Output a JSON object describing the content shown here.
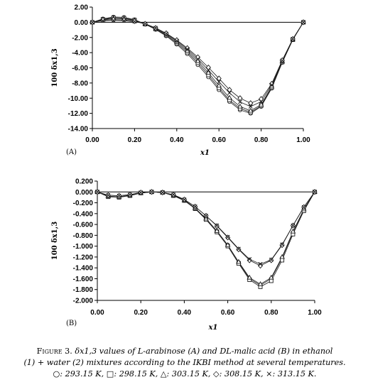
{
  "chart_data": [
    {
      "type": "line",
      "panel_label": "(A)",
      "xlabel": "x1",
      "ylabel": "100 δx1,3",
      "xlim": [
        0,
        1
      ],
      "ylim": [
        -14,
        2
      ],
      "xticks": [
        "0.00",
        "0.20",
        "0.40",
        "0.60",
        "0.80",
        "1.00"
      ],
      "yticks": [
        "2.00",
        "0.00",
        "-2.00",
        "-4.00",
        "-6.00",
        "-8.00",
        "-10.00",
        "-12.00",
        "-14.00"
      ],
      "grid": false,
      "x": [
        0,
        0.05,
        0.1,
        0.15,
        0.2,
        0.25,
        0.3,
        0.35,
        0.4,
        0.45,
        0.5,
        0.55,
        0.6,
        0.65,
        0.7,
        0.75,
        0.8,
        0.85,
        0.9,
        0.95,
        1
      ],
      "series": [
        {
          "marker": "circle",
          "values": [
            0,
            0.45,
            0.7,
            0.65,
            0.35,
            -0.25,
            -0.95,
            -1.8,
            -2.9,
            -4.15,
            -5.6,
            -7.2,
            -8.9,
            -10.45,
            -11.55,
            -12.0,
            -11.1,
            -8.7,
            -5.3,
            -2.3,
            0
          ]
        },
        {
          "marker": "square",
          "values": [
            0,
            0.4,
            0.6,
            0.55,
            0.3,
            -0.25,
            -0.9,
            -1.7,
            -2.75,
            -3.95,
            -5.35,
            -6.95,
            -8.65,
            -10.25,
            -11.35,
            -11.85,
            -11.0,
            -8.6,
            -5.25,
            -2.3,
            0
          ]
        },
        {
          "marker": "triangle",
          "values": [
            0,
            0.35,
            0.5,
            0.45,
            0.25,
            -0.2,
            -0.8,
            -1.6,
            -2.6,
            -3.75,
            -5.1,
            -6.65,
            -8.35,
            -9.95,
            -11.1,
            -11.65,
            -10.85,
            -8.45,
            -5.15,
            -2.25,
            0
          ]
        },
        {
          "marker": "diamond",
          "values": [
            0,
            0.3,
            0.35,
            0.3,
            0.15,
            -0.2,
            -0.75,
            -1.45,
            -2.35,
            -3.4,
            -4.6,
            -5.95,
            -7.4,
            -8.9,
            -10.0,
            -10.65,
            -10.1,
            -8.1,
            -5.0,
            -2.2,
            0
          ]
        },
        {
          "marker": "cross",
          "values": [
            0,
            0.2,
            0.25,
            0.2,
            0.1,
            -0.2,
            -0.75,
            -1.5,
            -2.45,
            -3.55,
            -4.85,
            -6.3,
            -7.85,
            -9.3,
            -10.5,
            -11.1,
            -10.45,
            -8.25,
            -5.05,
            -2.2,
            0
          ]
        }
      ]
    },
    {
      "type": "line",
      "panel_label": "(B)",
      "xlabel": "x1",
      "ylabel": "100 δx1,3",
      "xlim": [
        0,
        1
      ],
      "ylim": [
        -2.0,
        0.2
      ],
      "xticks": [
        "0.00",
        "0.20",
        "0.40",
        "0.60",
        "0.80",
        "1.00"
      ],
      "yticks": [
        "0.200",
        "0.000",
        "-0.200",
        "-0.400",
        "-0.600",
        "-0.800",
        "-1.000",
        "-1.200",
        "-1.400",
        "-1.600",
        "-1.800",
        "-2.000"
      ],
      "grid": false,
      "x": [
        0,
        0.05,
        0.1,
        0.15,
        0.2,
        0.25,
        0.3,
        0.35,
        0.4,
        0.45,
        0.5,
        0.55,
        0.6,
        0.65,
        0.7,
        0.75,
        0.8,
        0.85,
        0.9,
        0.95,
        1
      ],
      "series": [
        {
          "marker": "circle",
          "values": [
            0,
            -0.08,
            -0.09,
            -0.06,
            -0.02,
            0,
            -0.01,
            -0.06,
            -0.15,
            -0.3,
            -0.5,
            -0.72,
            -0.98,
            -1.3,
            -1.6,
            -1.72,
            -1.6,
            -1.22,
            -0.75,
            -0.33,
            0
          ]
        },
        {
          "marker": "square",
          "values": [
            0,
            -0.09,
            -0.1,
            -0.07,
            -0.02,
            0,
            -0.01,
            -0.07,
            -0.16,
            -0.31,
            -0.51,
            -0.74,
            -1.0,
            -1.32,
            -1.62,
            -1.75,
            -1.64,
            -1.26,
            -0.78,
            -0.35,
            0
          ]
        },
        {
          "marker": "triangle",
          "values": [
            0,
            -0.08,
            -0.09,
            -0.06,
            -0.02,
            0,
            -0.01,
            -0.06,
            -0.15,
            -0.3,
            -0.49,
            -0.72,
            -0.98,
            -1.29,
            -1.58,
            -1.7,
            -1.58,
            -1.2,
            -0.73,
            -0.32,
            0
          ]
        },
        {
          "marker": "diamond",
          "values": [
            0,
            -0.06,
            -0.07,
            -0.05,
            -0.01,
            0,
            -0.01,
            -0.05,
            -0.14,
            -0.27,
            -0.44,
            -0.63,
            -0.84,
            -1.06,
            -1.26,
            -1.36,
            -1.26,
            -0.98,
            -0.62,
            -0.28,
            0
          ]
        },
        {
          "marker": "cross",
          "values": [
            0,
            -0.06,
            -0.07,
            -0.05,
            -0.01,
            0,
            -0.01,
            -0.05,
            -0.14,
            -0.27,
            -0.44,
            -0.62,
            -0.83,
            -1.05,
            -1.24,
            -1.33,
            -1.25,
            -0.97,
            -0.62,
            -0.28,
            0
          ]
        }
      ]
    }
  ],
  "caption": {
    "figure_label": "Figure 3.",
    "line1": "δx1,3 values of L-arabinose (A) and DL-malic acid (B) in ethanol",
    "line2": "(1) + water (2) mixtures according to the IKBI method at several temperatures.",
    "legend": [
      {
        "symbol": "○",
        "text": ": 293.15 K,"
      },
      {
        "symbol": "□",
        "text": ": 298.15 K,"
      },
      {
        "symbol": "△",
        "text": ": 303.15 K,"
      },
      {
        "symbol": "◇",
        "text": ": 308.15 K,"
      },
      {
        "symbol": "×",
        "text": ": 313.15 K."
      }
    ]
  },
  "colors": {
    "line": "#1a1a1a",
    "marker_fill": "#ffffff",
    "axis": "#000000"
  }
}
